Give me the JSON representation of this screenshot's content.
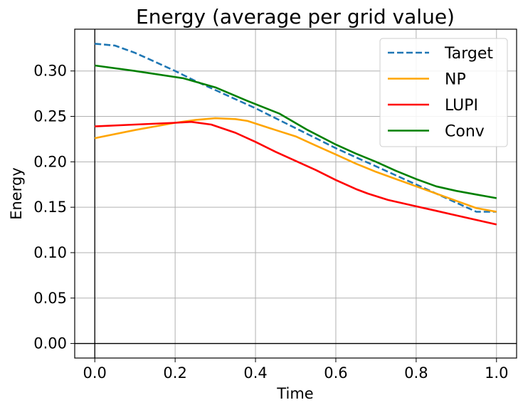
{
  "chart_data": {
    "type": "line",
    "title": "Energy (average per grid value)",
    "xlabel": "Time",
    "ylabel": "Energy",
    "xlim": [
      -0.05,
      1.05
    ],
    "ylim": [
      -0.016,
      0.346
    ],
    "xticks": [
      0.0,
      0.2,
      0.4,
      0.6,
      0.8,
      1.0
    ],
    "xtick_labels": [
      "0.0",
      "0.2",
      "0.4",
      "0.6",
      "0.8",
      "1.0"
    ],
    "yticks": [
      0.0,
      0.05,
      0.1,
      0.15,
      0.2,
      0.25,
      0.3
    ],
    "ytick_labels": [
      "0.00",
      "0.05",
      "0.10",
      "0.15",
      "0.20",
      "0.25",
      "0.30"
    ],
    "grid": true,
    "legend_position": "top-right",
    "series": [
      {
        "name": "Target",
        "color": "#1f77b4",
        "dashed": true,
        "x": [
          0.0,
          0.05,
          0.1,
          0.15,
          0.2,
          0.25,
          0.3,
          0.35,
          0.4,
          0.45,
          0.5,
          0.55,
          0.6,
          0.65,
          0.7,
          0.75,
          0.8,
          0.85,
          0.9,
          0.95,
          1.0
        ],
        "y": [
          0.33,
          0.328,
          0.32,
          0.31,
          0.3,
          0.289,
          0.279,
          0.269,
          0.259,
          0.248,
          0.237,
          0.226,
          0.215,
          0.205,
          0.195,
          0.185,
          0.175,
          0.165,
          0.155,
          0.145,
          0.145
        ]
      },
      {
        "name": "NP",
        "color": "#ffa500",
        "dashed": false,
        "x": [
          0.0,
          0.1,
          0.2,
          0.25,
          0.3,
          0.35,
          0.38,
          0.45,
          0.5,
          0.55,
          0.6,
          0.65,
          0.7,
          0.75,
          0.8,
          0.85,
          0.9,
          0.95,
          1.0
        ],
        "y": [
          0.226,
          0.235,
          0.243,
          0.246,
          0.248,
          0.247,
          0.245,
          0.235,
          0.228,
          0.218,
          0.208,
          0.198,
          0.189,
          0.181,
          0.173,
          0.165,
          0.157,
          0.149,
          0.145
        ]
      },
      {
        "name": "LUPI",
        "color": "#ff0000",
        "dashed": false,
        "x": [
          0.0,
          0.1,
          0.2,
          0.24,
          0.29,
          0.35,
          0.4,
          0.45,
          0.5,
          0.55,
          0.6,
          0.65,
          0.68,
          0.73,
          0.8,
          0.85,
          0.9,
          0.95,
          1.0
        ],
        "y": [
          0.239,
          0.241,
          0.243,
          0.244,
          0.241,
          0.232,
          0.222,
          0.211,
          0.201,
          0.191,
          0.18,
          0.17,
          0.165,
          0.158,
          0.151,
          0.146,
          0.141,
          0.136,
          0.131
        ]
      },
      {
        "name": "Conv",
        "color": "#008000",
        "dashed": false,
        "x": [
          0.0,
          0.1,
          0.22,
          0.3,
          0.38,
          0.46,
          0.53,
          0.6,
          0.65,
          0.7,
          0.75,
          0.8,
          0.85,
          0.9,
          0.95,
          1.0
        ],
        "y": [
          0.306,
          0.3,
          0.292,
          0.282,
          0.267,
          0.253,
          0.235,
          0.219,
          0.209,
          0.2,
          0.19,
          0.181,
          0.173,
          0.168,
          0.164,
          0.16
        ]
      }
    ]
  }
}
